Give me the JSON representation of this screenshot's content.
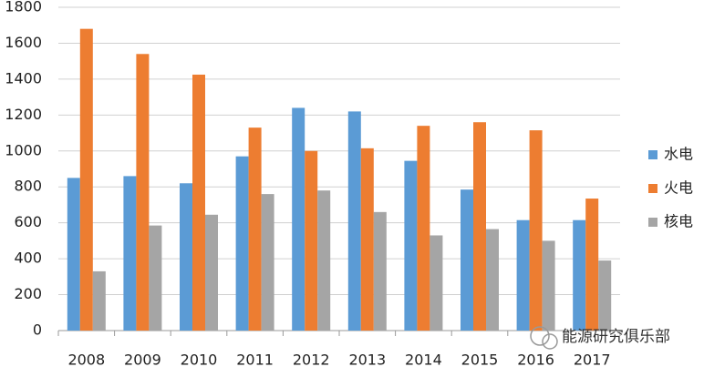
{
  "chart_data": {
    "type": "bar",
    "categories": [
      "2008",
      "2009",
      "2010",
      "2011",
      "2012",
      "2013",
      "2014",
      "2015",
      "2016",
      "2017"
    ],
    "series": [
      {
        "name": "水电",
        "color": "#5b9bd5",
        "values": [
          850,
          860,
          820,
          970,
          1240,
          1220,
          945,
          785,
          615,
          615
        ]
      },
      {
        "name": "火电",
        "color": "#ed7d31",
        "values": [
          1680,
          1540,
          1425,
          1130,
          1000,
          1015,
          1140,
          1160,
          1115,
          735
        ]
      },
      {
        "name": "核电",
        "color": "#a5a5a5",
        "values": [
          330,
          585,
          645,
          760,
          780,
          660,
          530,
          565,
          500,
          390
        ]
      }
    ],
    "ylim": [
      0,
      1800
    ],
    "yticks": [
      0,
      200,
      400,
      600,
      800,
      1000,
      1200,
      1400,
      1600,
      1800
    ],
    "grid": true,
    "legend": "right",
    "watermark": "能源研究俱乐部"
  }
}
